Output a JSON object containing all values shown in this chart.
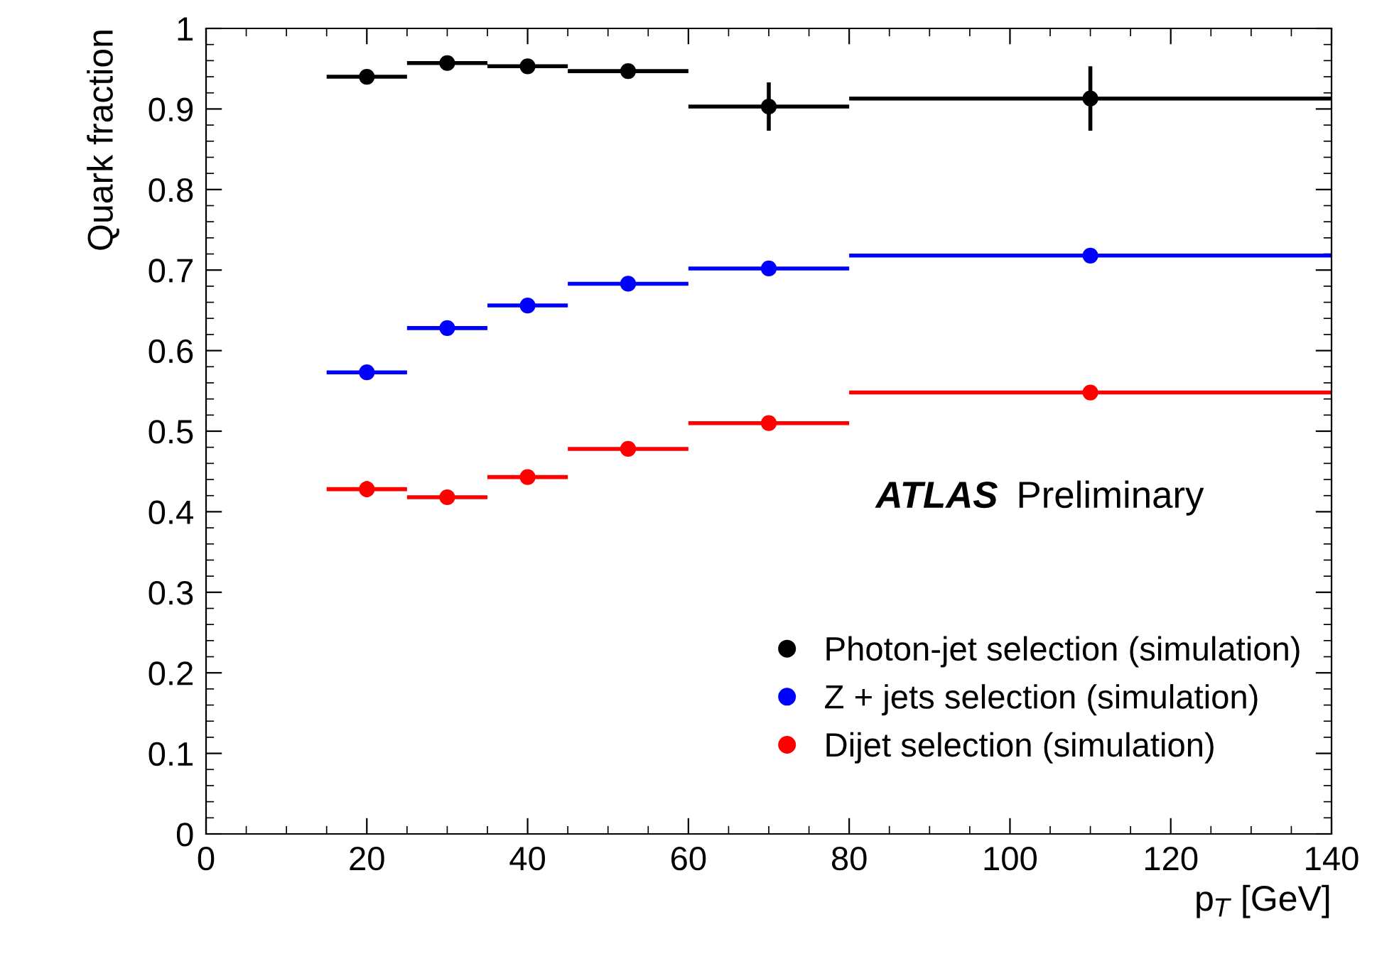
{
  "chart_data": {
    "type": "scatter",
    "xlabel": "p$_{T}$ [GeV]",
    "ylabel": "Quark fraction",
    "x": [
      20,
      30,
      40,
      52.5,
      70,
      110
    ],
    "xlim": [
      0,
      140
    ],
    "xticks": [
      0,
      20,
      40,
      60,
      80,
      100,
      120,
      140
    ],
    "ylim": [
      0,
      1
    ],
    "yticks": [
      0,
      0.1,
      0.2,
      0.3,
      0.4,
      0.5,
      0.6,
      0.7,
      0.8,
      0.9,
      1
    ],
    "marker": "circle",
    "legend": "bottom right",
    "grid": false,
    "annotations": [
      "ATLAS",
      "Preliminary"
    ],
    "series": [
      {
        "name": "Photon-jet selection (simulation)",
        "color": "#000000",
        "values": [
          0.94,
          0.957,
          0.953,
          0.947,
          0.903,
          0.913
        ],
        "errors": [
          0.006,
          0.005,
          0.005,
          0.006,
          0.03,
          0.04
        ],
        "xerrors": [
          [
            15,
            25
          ],
          [
            25,
            35
          ],
          [
            35,
            45
          ],
          [
            45,
            60
          ],
          [
            60,
            80
          ],
          [
            80,
            140
          ]
        ]
      },
      {
        "name": "Z + jets selection (simulation)",
        "color": "#0000ff",
        "values": [
          0.573,
          0.628,
          0.656,
          0.683,
          0.702,
          0.718
        ],
        "errors": [
          0.004,
          0.004,
          0.004,
          0.004,
          0.004,
          0.004
        ],
        "xerrors": [
          [
            15,
            25
          ],
          [
            25,
            35
          ],
          [
            35,
            45
          ],
          [
            45,
            60
          ],
          [
            60,
            80
          ],
          [
            80,
            140
          ]
        ]
      },
      {
        "name": "Dijet selection (simulation)",
        "color": "#ff0000",
        "values": [
          0.428,
          0.418,
          0.443,
          0.478,
          0.51,
          0.548
        ],
        "errors": [
          0.01,
          0.005,
          0.005,
          0.004,
          0.004,
          0.004
        ],
        "xerrors": [
          [
            15,
            25
          ],
          [
            25,
            35
          ],
          [
            35,
            45
          ],
          [
            45,
            60
          ],
          [
            60,
            80
          ],
          [
            80,
            140
          ]
        ]
      }
    ]
  }
}
